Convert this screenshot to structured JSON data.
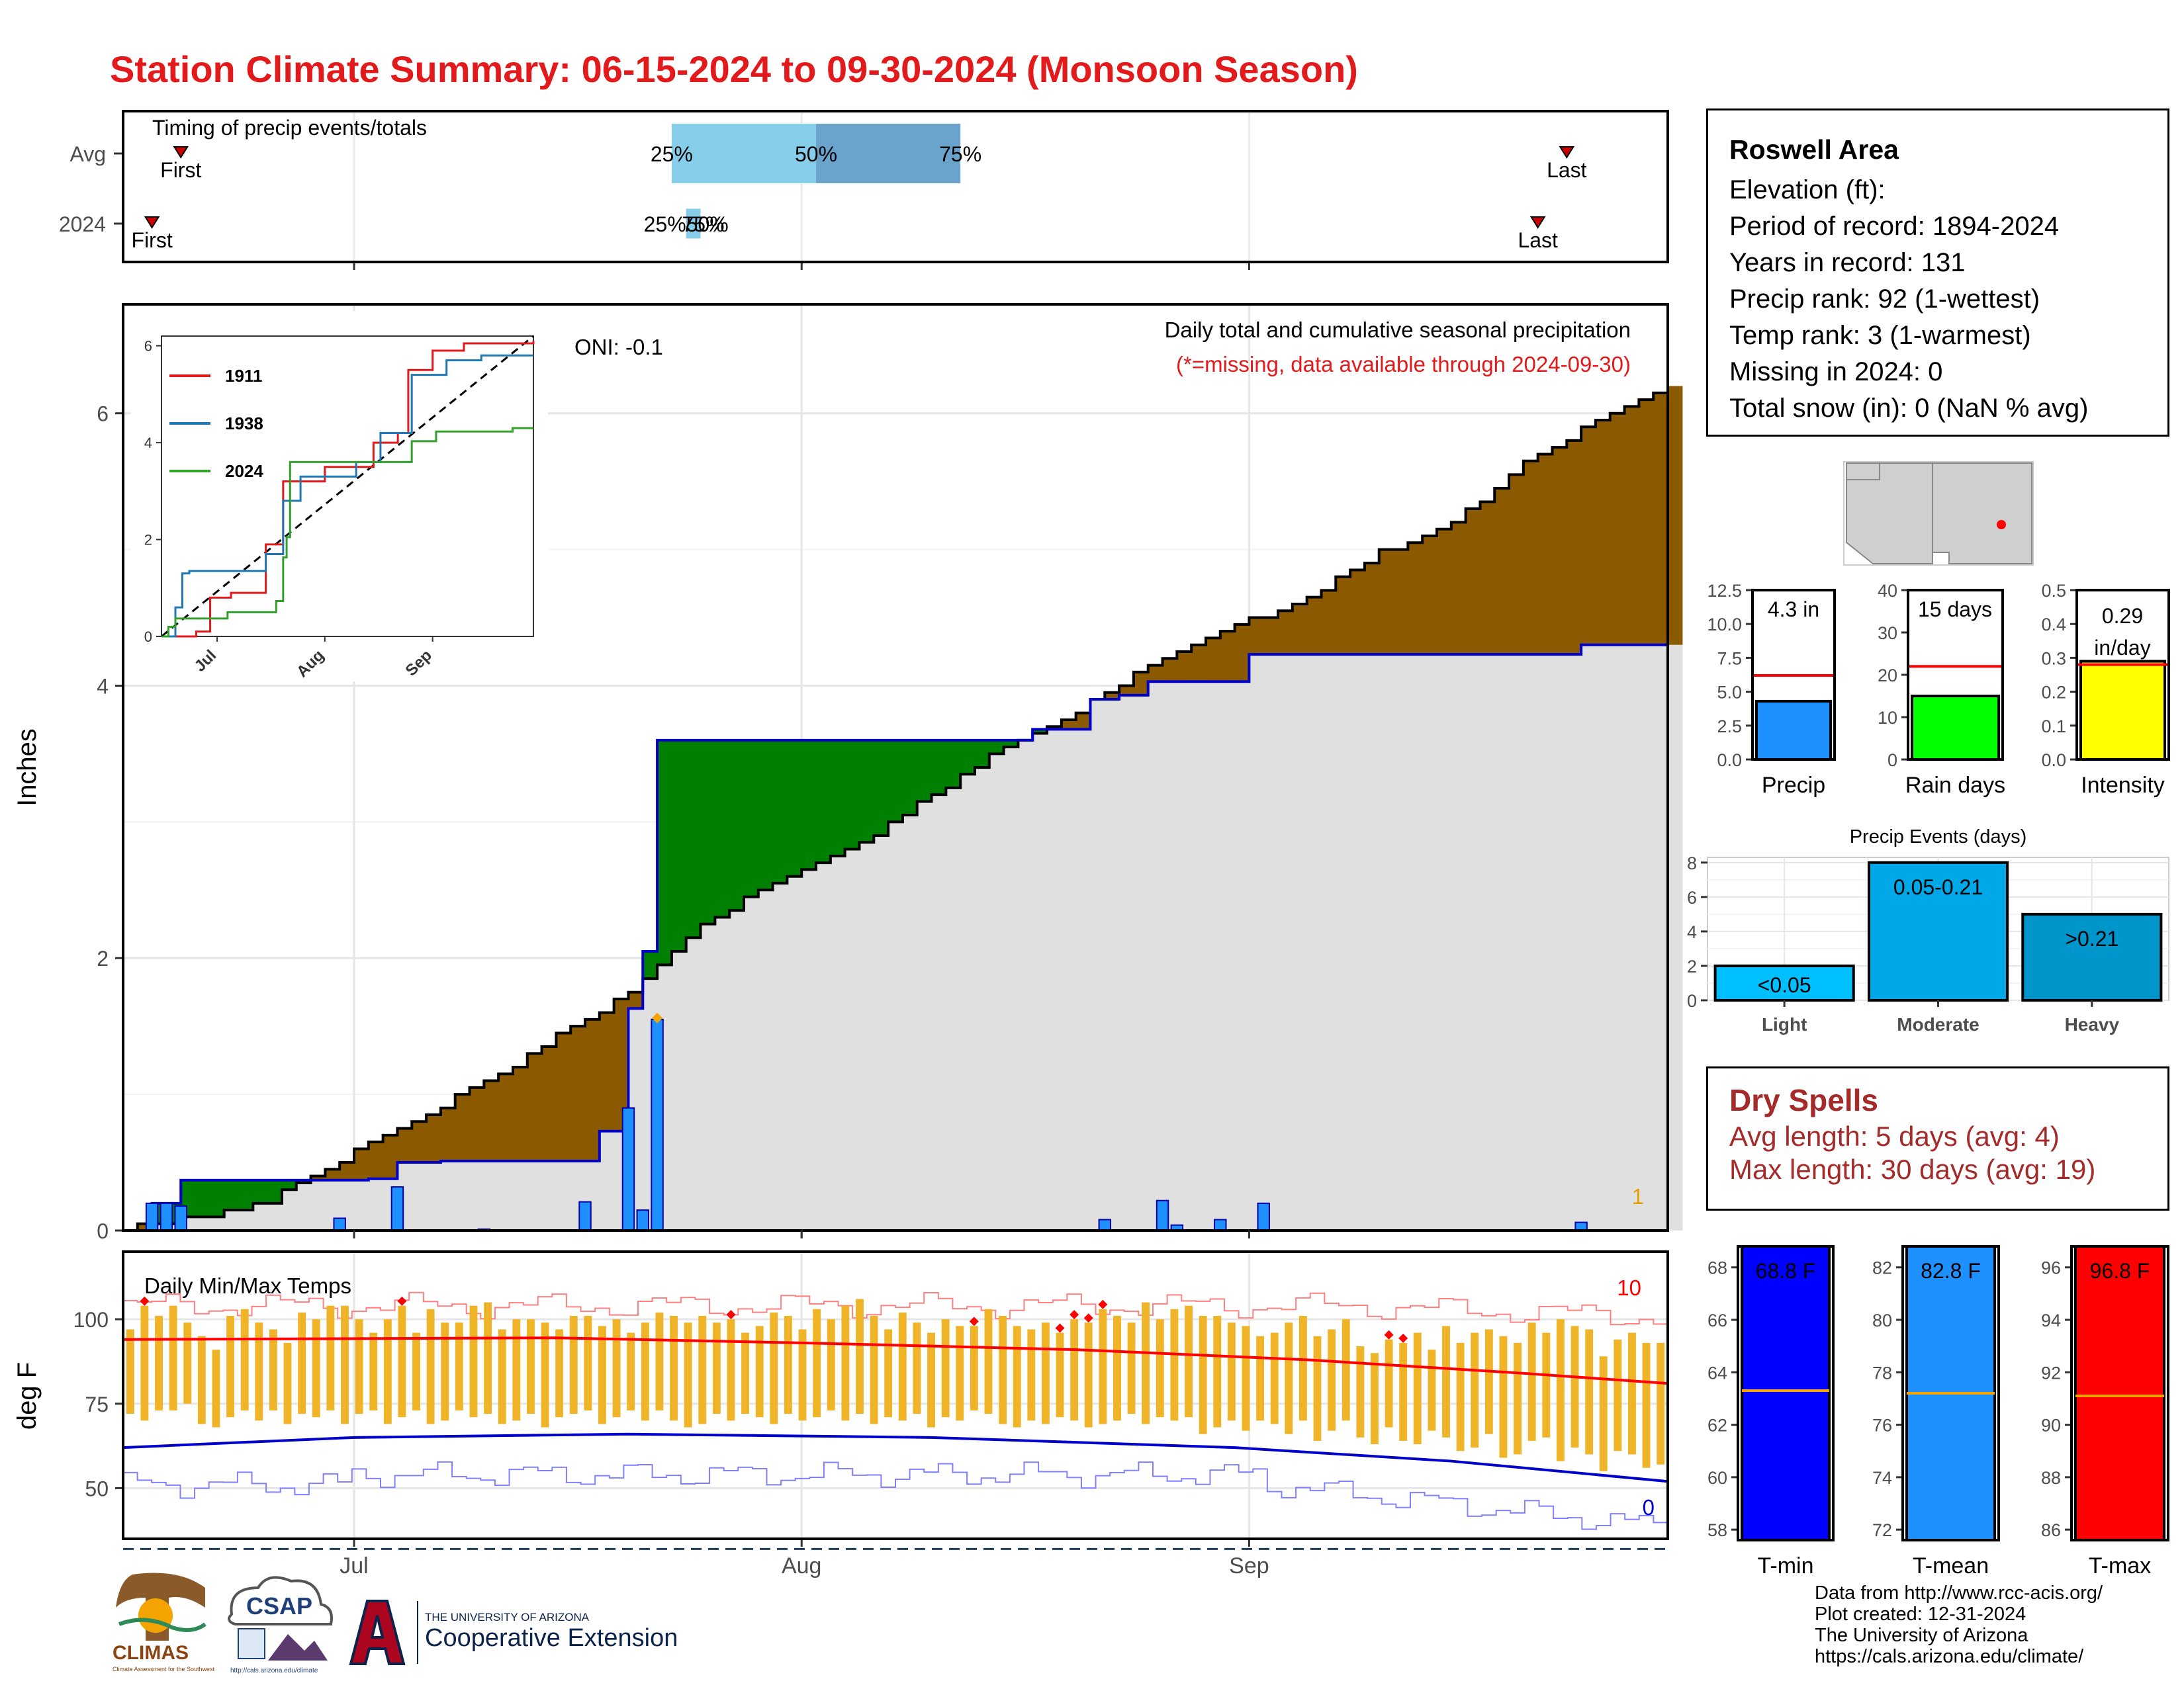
{
  "page": {
    "title": "Station Climate Summary: 06-15-2024 to 09-30-2024 (Monsoon Season)"
  },
  "info_panel": {
    "station": "Roswell Area",
    "lines": [
      "Elevation (ft):",
      "Period of record: 1894-2024",
      "Years in record: 131",
      "Precip rank: 92 (1-wettest)",
      "Temp rank: 3 (1-warmest)",
      "Missing in 2024: 0",
      "Total snow (in): 0 (NaN % avg)"
    ]
  },
  "dry_spells": {
    "title": "Dry Spells",
    "avg_length": "Avg length: 5 days (avg: 4)",
    "max_length": "Max length: 30 days (avg: 19)"
  },
  "credits": [
    "Data from http://www.rcc-acis.org/",
    "Plot created: 12-31-2024",
    "The University of Arizona",
    "https://cals.arizona.edu/climate/"
  ],
  "logos": {
    "climas": "CLIMAS",
    "climas_sub": "Climate Assessment for the Southwest",
    "csap": "CSAP",
    "csap_sub": "http://cals.arizona.edu/climate",
    "ua_line1": "THE UNIVERSITY OF ARIZONA",
    "ua_line2": "Cooperative Extension"
  },
  "colors": {
    "title": "#e31a1c",
    "above_normal": "#008000",
    "below_normal": "#8b5a00",
    "cumulative_fill": "#e0e0e0",
    "daily_bar": "#1e90ff",
    "avg_line": "#0000cd",
    "temp_bar": "#f0b429",
    "tmax_avg": "#ff0000",
    "tmin_avg": "#0000cd",
    "dry_spells": "#a52a2a"
  },
  "chart_data": [
    {
      "id": "timing",
      "type": "bar",
      "title": "Timing of precip events/totals",
      "rows": [
        "Avg",
        "2024"
      ],
      "x_ticks": [
        "Jul",
        "Aug",
        "Sep"
      ],
      "avg": {
        "first": "06-19",
        "p25": "07-23",
        "p50": "08-02",
        "p75": "08-12",
        "last": "09-23",
        "labels": [
          "First",
          "25%",
          "50%",
          "75%",
          "Last"
        ]
      },
      "y2024": {
        "first": "06-17",
        "p25": "07-24",
        "p50": "07-24",
        "p75": "07-25",
        "last": "09-21",
        "labels": [
          "First",
          "25%",
          "50%",
          "75%",
          "Last"
        ],
        "overlap_label": "25%50%"
      }
    },
    {
      "id": "precip_main",
      "type": "area",
      "title": "Daily total and cumulative seasonal precipitation",
      "subtitle": "(*=missing, data available through 2024-09-30)",
      "annotation": "ONI: -0.1",
      "corner_count": "1",
      "ylabel": "Inches",
      "ylim": [
        0,
        6.8
      ],
      "y_ticks": [
        0,
        2,
        4,
        6
      ],
      "x_ticks": [
        "Jul",
        "Aug",
        "Sep"
      ],
      "observed_cumulative": [
        {
          "date": "06-15",
          "value": 0
        },
        {
          "date": "06-17",
          "value": 0.2
        },
        {
          "date": "06-19",
          "value": 0.37
        },
        {
          "date": "07-02",
          "value": 0.38
        },
        {
          "date": "07-04",
          "value": 0.5
        },
        {
          "date": "07-07",
          "value": 0.51
        },
        {
          "date": "07-18",
          "value": 0.73
        },
        {
          "date": "07-20",
          "value": 1.63
        },
        {
          "date": "07-21",
          "value": 2.05
        },
        {
          "date": "07-22",
          "value": 3.6
        },
        {
          "date": "08-15",
          "value": 3.6
        },
        {
          "date": "08-17",
          "value": 3.68
        },
        {
          "date": "08-21",
          "value": 3.9
        },
        {
          "date": "08-23",
          "value": 3.93
        },
        {
          "date": "08-25",
          "value": 4.03
        },
        {
          "date": "09-01",
          "value": 4.23
        },
        {
          "date": "09-06",
          "value": 4.23
        },
        {
          "date": "09-24",
          "value": 4.3
        },
        {
          "date": "09-30",
          "value": 4.3
        }
      ],
      "average_cumulative": [
        {
          "date": "06-15",
          "value": 0.02
        },
        {
          "date": "06-20",
          "value": 0.1
        },
        {
          "date": "06-25",
          "value": 0.22
        },
        {
          "date": "06-30",
          "value": 0.52
        },
        {
          "date": "07-05",
          "value": 0.82
        },
        {
          "date": "07-10",
          "value": 1.08
        },
        {
          "date": "07-15",
          "value": 1.44
        },
        {
          "date": "07-20",
          "value": 1.74
        },
        {
          "date": "07-25",
          "value": 2.25
        },
        {
          "date": "07-31",
          "value": 2.62
        },
        {
          "date": "08-05",
          "value": 2.85
        },
        {
          "date": "08-10",
          "value": 3.2
        },
        {
          "date": "08-15",
          "value": 3.57
        },
        {
          "date": "08-20",
          "value": 3.82
        },
        {
          "date": "08-25",
          "value": 4.15
        },
        {
          "date": "08-31",
          "value": 4.43
        },
        {
          "date": "09-05",
          "value": 4.66
        },
        {
          "date": "09-10",
          "value": 4.98
        },
        {
          "date": "09-15",
          "value": 5.2
        },
        {
          "date": "09-20",
          "value": 5.63
        },
        {
          "date": "09-25",
          "value": 5.95
        },
        {
          "date": "09-30",
          "value": 6.2
        }
      ],
      "daily_precip": [
        {
          "date": "06-17",
          "value": 0.2
        },
        {
          "date": "06-18",
          "value": 0.2
        },
        {
          "date": "06-19",
          "value": 0.18
        },
        {
          "date": "06-30",
          "value": 0.09
        },
        {
          "date": "07-04",
          "value": 0.32
        },
        {
          "date": "07-10",
          "value": 0.01
        },
        {
          "date": "07-17",
          "value": 0.21
        },
        {
          "date": "07-20",
          "value": 0.9
        },
        {
          "date": "07-21",
          "value": 0.15
        },
        {
          "date": "07-22",
          "value": 1.55
        },
        {
          "date": "08-22",
          "value": 0.08
        },
        {
          "date": "08-26",
          "value": 0.22
        },
        {
          "date": "08-27",
          "value": 0.04
        },
        {
          "date": "08-30",
          "value": 0.08
        },
        {
          "date": "09-02",
          "value": 0.2
        },
        {
          "date": "09-24",
          "value": 0.06
        }
      ]
    },
    {
      "id": "inset_years",
      "type": "line",
      "x_ticks": [
        "Jul",
        "Aug",
        "Sep"
      ],
      "y_ticks": [
        0,
        2,
        4,
        6
      ],
      "ylim": [
        0,
        6.2
      ],
      "series": [
        {
          "name": "1911",
          "color": "#e31a1c",
          "points": [
            {
              "date": "06-15",
              "value": 0
            },
            {
              "date": "06-25",
              "value": 0.1
            },
            {
              "date": "06-29",
              "value": 0.8
            },
            {
              "date": "07-05",
              "value": 0.9
            },
            {
              "date": "07-15",
              "value": 1.9
            },
            {
              "date": "07-20",
              "value": 3.2
            },
            {
              "date": "08-01",
              "value": 3.5
            },
            {
              "date": "08-10",
              "value": 3.5
            },
            {
              "date": "08-15",
              "value": 4.0
            },
            {
              "date": "08-22",
              "value": 4.2
            },
            {
              "date": "08-25",
              "value": 5.5
            },
            {
              "date": "09-01",
              "value": 5.9
            },
            {
              "date": "09-10",
              "value": 6.05
            },
            {
              "date": "09-30",
              "value": 6.1
            }
          ]
        },
        {
          "name": "1938",
          "color": "#1f78b4",
          "points": [
            {
              "date": "06-15",
              "value": 0
            },
            {
              "date": "06-19",
              "value": 0.6
            },
            {
              "date": "06-21",
              "value": 1.3
            },
            {
              "date": "06-23",
              "value": 1.35
            },
            {
              "date": "07-15",
              "value": 1.7
            },
            {
              "date": "07-20",
              "value": 2.8
            },
            {
              "date": "07-25",
              "value": 3.3
            },
            {
              "date": "08-10",
              "value": 3.6
            },
            {
              "date": "08-17",
              "value": 4.2
            },
            {
              "date": "08-26",
              "value": 5.4
            },
            {
              "date": "09-05",
              "value": 5.7
            },
            {
              "date": "09-15",
              "value": 5.8
            },
            {
              "date": "09-30",
              "value": 5.8
            }
          ]
        },
        {
          "name": "2024",
          "color": "#33a02c",
          "points": [
            {
              "date": "06-15",
              "value": 0
            },
            {
              "date": "06-17",
              "value": 0.2
            },
            {
              "date": "06-19",
              "value": 0.37
            },
            {
              "date": "07-04",
              "value": 0.5
            },
            {
              "date": "07-18",
              "value": 0.73
            },
            {
              "date": "07-20",
              "value": 1.63
            },
            {
              "date": "07-21",
              "value": 2.05
            },
            {
              "date": "07-22",
              "value": 3.6
            },
            {
              "date": "08-15",
              "value": 3.6
            },
            {
              "date": "08-26",
              "value": 4.03
            },
            {
              "date": "09-02",
              "value": 4.23
            },
            {
              "date": "09-24",
              "value": 4.3
            },
            {
              "date": "09-30",
              "value": 4.3
            }
          ]
        }
      ],
      "reference_line": "average (dashed)"
    },
    {
      "id": "temps",
      "type": "bar",
      "title": "Daily Min/Max Temps",
      "ylabel": "deg F",
      "y_ticks": [
        50,
        75,
        100
      ],
      "ylim": [
        35,
        120
      ],
      "x_ticks": [
        "Jul",
        "Aug",
        "Sep"
      ],
      "count_top": "10",
      "count_bottom": "0",
      "freeze_line": 32,
      "avg_tmax": [
        {
          "date": "06-15",
          "value": 94
        },
        {
          "date": "07-15",
          "value": 94.5
        },
        {
          "date": "08-01",
          "value": 93
        },
        {
          "date": "08-20",
          "value": 91
        },
        {
          "date": "09-05",
          "value": 88
        },
        {
          "date": "09-20",
          "value": 84
        },
        {
          "date": "09-30",
          "value": 81
        }
      ],
      "avg_tmin": [
        {
          "date": "06-15",
          "value": 62
        },
        {
          "date": "07-01",
          "value": 65
        },
        {
          "date": "07-20",
          "value": 66
        },
        {
          "date": "08-10",
          "value": 65
        },
        {
          "date": "08-31",
          "value": 62
        },
        {
          "date": "09-15",
          "value": 58
        },
        {
          "date": "09-30",
          "value": 52
        }
      ],
      "record_high_dates": [
        "06-16",
        "07-04",
        "07-27",
        "08-13",
        "08-19",
        "08-20",
        "08-21",
        "08-22",
        "09-11",
        "09-12"
      ],
      "daily_tmax": [
        97,
        104,
        101,
        104,
        99,
        95,
        91,
        101,
        103,
        99,
        97,
        93,
        102,
        100,
        104,
        104,
        100,
        96,
        100,
        104,
        96,
        103,
        99,
        99,
        104,
        105,
        97,
        100,
        100,
        99,
        97,
        101,
        101,
        98,
        100,
        96,
        99,
        102,
        101,
        99,
        101,
        99,
        100,
        96,
        98,
        102,
        101,
        97,
        103,
        100,
        104,
        106,
        101,
        97,
        102,
        99,
        96,
        100,
        98,
        98,
        103,
        101,
        98,
        97,
        99,
        96,
        100,
        99,
        103,
        101,
        99,
        105,
        100,
        103,
        104,
        101,
        101,
        99,
        98,
        95,
        96,
        99,
        101,
        95,
        97,
        100,
        92,
        90,
        94,
        93,
        96,
        91,
        98,
        93,
        96,
        97,
        95,
        93,
        99,
        96,
        100,
        98,
        97,
        89,
        94,
        96,
        93,
        93
      ],
      "daily_tmin": [
        72,
        70,
        73,
        73,
        75,
        69,
        68,
        71,
        73,
        70,
        73,
        69,
        72,
        71,
        73,
        69,
        72,
        73,
        69,
        71,
        73,
        69,
        70,
        73,
        71,
        72,
        69,
        70,
        72,
        68,
        71,
        72,
        73,
        69,
        71,
        73,
        70,
        73,
        70,
        68,
        69,
        72,
        70,
        72,
        71,
        69,
        72,
        70,
        71,
        73,
        70,
        72,
        69,
        71,
        70,
        72,
        68,
        71,
        70,
        73,
        72,
        69,
        68,
        70,
        69,
        71,
        70,
        68,
        69,
        70,
        72,
        69,
        71,
        70,
        71,
        66,
        68,
        70,
        67,
        70,
        69,
        66,
        70,
        64,
        67,
        70,
        65,
        63,
        68,
        64,
        63,
        67,
        65,
        61,
        62,
        66,
        59,
        60,
        64,
        65,
        58,
        62,
        60,
        55,
        61,
        60,
        56,
        57
      ],
      "record_high_series": "upper thin red step line (~105)",
      "record_low_series": "lower thin blue step line (~50)"
    },
    {
      "id": "totals_precip",
      "type": "bar",
      "label": "Precip",
      "value_label": "4.3 in",
      "value": 4.3,
      "avg": 6.2,
      "y_ticks": [
        "0.0",
        "2.5",
        "5.0",
        "7.5",
        "10.0",
        "12.5"
      ],
      "ylim": [
        0,
        12.5
      ],
      "color": "#1e90ff"
    },
    {
      "id": "totals_raindays",
      "type": "bar",
      "label": "Rain days",
      "value_label": "15 days",
      "value": 15,
      "avg": 22,
      "y_ticks": [
        "0",
        "10",
        "20",
        "30",
        "40"
      ],
      "ylim": [
        0,
        40
      ],
      "color": "#00ff00"
    },
    {
      "id": "totals_intensity",
      "type": "bar",
      "label": "Intensity",
      "value_label_1": "0.29",
      "value_label_2": "in/day",
      "value": 0.29,
      "avg": 0.28,
      "y_ticks": [
        "0.0",
        "0.1",
        "0.2",
        "0.3",
        "0.4",
        "0.5"
      ],
      "ylim": [
        0,
        0.5
      ],
      "color": "#ffff00"
    },
    {
      "id": "precip_events",
      "type": "bar",
      "title": "Precip Events (days)",
      "categories": [
        "Light",
        "Moderate",
        "Heavy"
      ],
      "bar_labels": [
        "<0.05",
        "0.05-0.21",
        ">0.21"
      ],
      "values": [
        2,
        8,
        5
      ],
      "colors": [
        "#00bfff",
        "#00a8e8",
        "#0096cc"
      ],
      "y_ticks": [
        "0",
        "2",
        "4",
        "6",
        "8"
      ],
      "ylim": [
        0,
        8.3
      ]
    },
    {
      "id": "temp_tmin",
      "type": "bar",
      "label": "T-min",
      "value_label": "68.8 F",
      "value": 68.8,
      "avg": 63.3,
      "y_ticks": [
        "58",
        "60",
        "62",
        "64",
        "66",
        "68"
      ],
      "ylim": [
        57.6,
        68.8
      ],
      "color": "#0000ff"
    },
    {
      "id": "temp_tmean",
      "type": "bar",
      "label": "T-mean",
      "value_label": "82.8 F",
      "value": 82.8,
      "avg": 77.2,
      "y_ticks": [
        "72",
        "74",
        "76",
        "78",
        "80",
        "82"
      ],
      "ylim": [
        71.6,
        82.8
      ],
      "color": "#1e90ff"
    },
    {
      "id": "temp_tmax",
      "type": "bar",
      "label": "T-max",
      "value_label": "96.8 F",
      "value": 96.8,
      "avg": 91.1,
      "y_ticks": [
        "86",
        "88",
        "90",
        "92",
        "94",
        "96"
      ],
      "ylim": [
        85.6,
        96.8
      ],
      "color": "#ff0000"
    }
  ]
}
